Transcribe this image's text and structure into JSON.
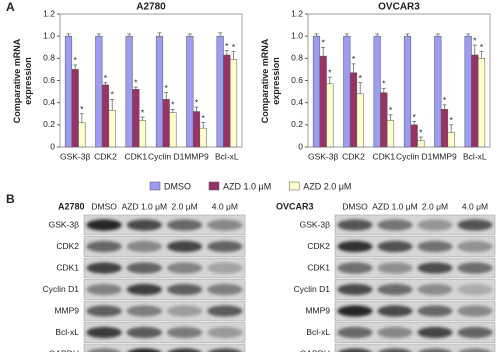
{
  "panel_labels": [
    "A",
    "B"
  ],
  "chart_data": [
    {
      "type": "bar",
      "title": "A2780",
      "y_label": "Comparative mRNA expression",
      "categories": [
        "GSK-3β",
        "CDK2",
        "CDK1",
        "Cyclin D1",
        "MMP9",
        "Bcl-xL"
      ],
      "series": [
        {
          "name": "DMSO",
          "color": "#9c9cf2",
          "values": [
            1,
            1,
            1,
            1,
            1,
            1
          ],
          "errors": [
            0.02,
            0.02,
            0.02,
            0.03,
            0.02,
            0.03
          ]
        },
        {
          "name": "AZD 1.0 μM",
          "color": "#993366",
          "values": [
            0.7,
            0.56,
            0.52,
            0.43,
            0.32,
            0.83
          ],
          "errors": [
            0.04,
            0.02,
            0.02,
            0.06,
            0.04,
            0.04
          ]
        },
        {
          "name": "AZD 2.0 μM",
          "color": "#ffffcc",
          "values": [
            0.22,
            0.33,
            0.24,
            0.31,
            0.17,
            0.79
          ],
          "errors": [
            0.08,
            0.1,
            0.03,
            0.03,
            0.05,
            0.07
          ]
        }
      ],
      "significance_label": "*",
      "ylim": [
        0,
        1.2
      ],
      "yticks": [
        0,
        0.2,
        0.4,
        0.6,
        0.8,
        {
          "value": 1,
          "label": "1.0"
        },
        1.2
      ],
      "legend": "bottom"
    },
    {
      "type": "bar",
      "title": "OVCAR3",
      "y_label": "Comparative mRNA expression",
      "categories": [
        "GSK-3β",
        "CDK2",
        "CDK1",
        "Cyclin D1",
        "MMP9",
        "Bcl-xL"
      ],
      "series": [
        {
          "name": "DMSO",
          "color": "#9c9cf2",
          "values": [
            1,
            1,
            1,
            1,
            1,
            1
          ],
          "errors": [
            0.02,
            0.02,
            0.02,
            0.02,
            0.02,
            0.02
          ]
        },
        {
          "name": "AZD 1.0 μM",
          "color": "#993366",
          "values": [
            0.82,
            0.67,
            0.49,
            0.2,
            0.34,
            0.83
          ],
          "errors": [
            0.08,
            0.08,
            0.04,
            0.03,
            0.04,
            0.09
          ]
        },
        {
          "name": "AZD 2.0 μM",
          "color": "#ffffcc",
          "values": [
            0.57,
            0.48,
            0.24,
            0.06,
            0.13,
            0.8
          ],
          "errors": [
            0.06,
            0.1,
            0.05,
            0.03,
            0.07,
            0.06
          ]
        }
      ],
      "significance_label": "*",
      "ylim": [
        0,
        1.2
      ],
      "yticks": [
        0,
        0.2,
        0.4,
        0.6,
        0.8,
        {
          "value": 1,
          "label": "1.0"
        },
        1.2
      ]
    }
  ],
  "blots": [
    {
      "title": "A2780",
      "lanes": [
        "DMSO",
        "AZD 1.0 μM",
        "2.0 μM",
        "4.0 μM"
      ],
      "proteins": [
        "GSK-3β",
        "CDK2",
        "CDK1",
        "Cyclin D1",
        "MMP9",
        "Bcl-xL",
        "GAPDH"
      ]
    },
    {
      "title": "OVCAR3",
      "lanes": [
        "DMSO",
        "AZD 1.0 μM",
        "2.0 μM",
        "4.0 μM"
      ],
      "proteins": [
        "GSK-3β",
        "CDK2",
        "CDK1",
        "Cyclin D1",
        "MMP9",
        "Bcl-xL",
        "GAPDH"
      ]
    }
  ]
}
